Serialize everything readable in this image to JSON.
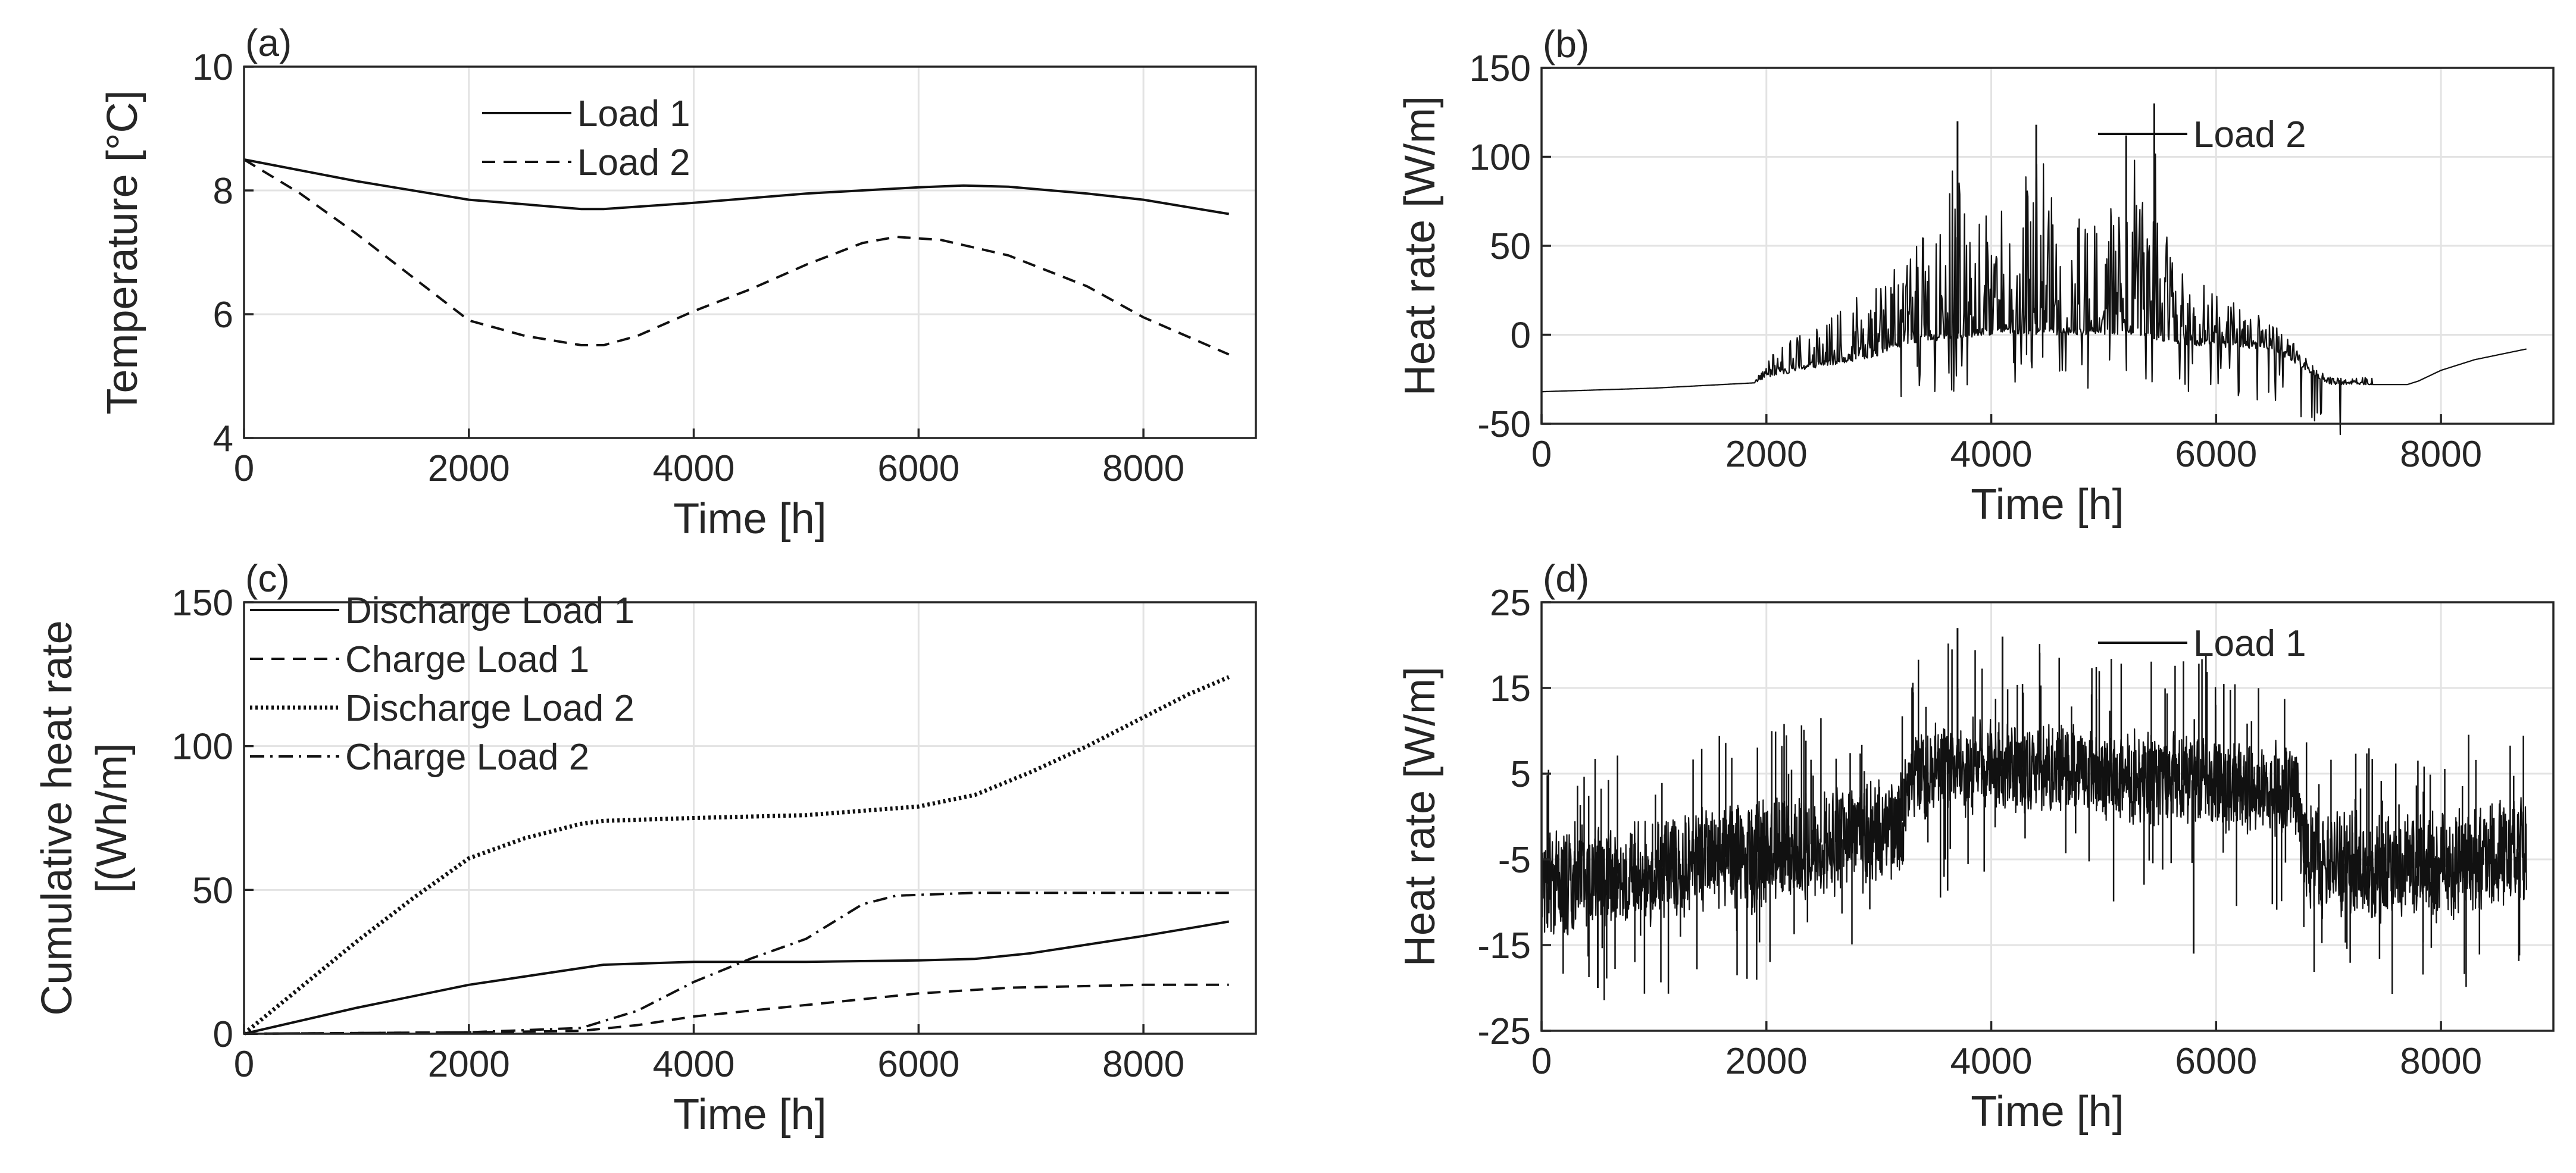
{
  "chart_data": [
    {
      "id": "a",
      "panel_label": "(a)",
      "type": "line",
      "xlabel": "Time [h]",
      "ylabel": "Temperature [°C]",
      "xlim": [
        0,
        9000
      ],
      "ylim": [
        4,
        10
      ],
      "xticks": [
        0,
        2000,
        4000,
        6000,
        8000
      ],
      "yticks": [
        4,
        6,
        8,
        10
      ],
      "legend_position": "top-center",
      "series": [
        {
          "name": "Load 1",
          "style": "solid",
          "x": [
            0,
            1000,
            2000,
            3000,
            3200,
            4000,
            5000,
            6000,
            6400,
            6800,
            7500,
            8000,
            8760
          ],
          "y": [
            8.5,
            8.15,
            7.85,
            7.7,
            7.7,
            7.8,
            7.95,
            8.05,
            8.08,
            8.06,
            7.95,
            7.85,
            7.62
          ]
        },
        {
          "name": "Load 2",
          "style": "dashed",
          "x": [
            0,
            500,
            1000,
            1500,
            2000,
            2500,
            3000,
            3200,
            3500,
            4000,
            4500,
            5000,
            5500,
            5800,
            6200,
            6800,
            7500,
            8000,
            8760
          ],
          "y": [
            8.5,
            7.95,
            7.3,
            6.6,
            5.9,
            5.65,
            5.5,
            5.5,
            5.65,
            6.05,
            6.4,
            6.8,
            7.15,
            7.25,
            7.2,
            6.95,
            6.45,
            5.95,
            5.35
          ]
        }
      ]
    },
    {
      "id": "b",
      "panel_label": "(b)",
      "type": "line",
      "xlabel": "Time [h]",
      "ylabel": "Heat rate [W/m]",
      "xlim": [
        0,
        9000
      ],
      "ylim": [
        -50,
        150
      ],
      "xticks": [
        0,
        2000,
        4000,
        6000,
        8000
      ],
      "yticks": [
        -50,
        0,
        50,
        100,
        150
      ],
      "legend_position": "top-right",
      "series": [
        {
          "name": "Load 2",
          "style": "solid-noisy",
          "baseline": {
            "x": [
              0,
              1000,
              1900,
              2000,
              2500,
              3000,
              3300,
              4000,
              5000,
              5300,
              5600,
              6000,
              6500,
              7000,
              7700,
              7800,
              8000,
              8300,
              8760
            ],
            "y": [
              -32,
              -30,
              -27,
              -24,
              -18,
              -12,
              -5,
              0,
              0,
              0,
              -5,
              -7,
              -8,
              -28,
              -28,
              -26,
              -20,
              -14,
              -8
            ]
          },
          "spike_envelope": {
            "x": [
              1900,
              2000,
              2500,
              3000,
              3400,
              3600,
              3700,
              3800,
              4000,
              4200,
              4400,
              4600,
              4800,
              5000,
              5200,
              5400,
              5450,
              5600,
              6000,
              6500,
              7000,
              7400
            ],
            "y": [
              0,
              10,
              30,
              40,
              60,
              80,
              120,
              60,
              80,
              60,
              118,
              60,
              80,
              58,
              112,
              100,
              130,
              50,
              30,
              15,
              5,
              0
            ]
          },
          "notable_peaks": [
            {
              "x": 3700,
              "y": 120
            },
            {
              "x": 4400,
              "y": 118
            },
            {
              "x": 5200,
              "y": 112
            },
            {
              "x": 5450,
              "y": 130
            }
          ]
        }
      ]
    },
    {
      "id": "c",
      "panel_label": "(c)",
      "type": "line",
      "xlabel": "Time [h]",
      "ylabel": [
        "Cumulative heat rate",
        "[(Wh/m]"
      ],
      "xlim": [
        0,
        9000
      ],
      "ylim": [
        0,
        150
      ],
      "xticks": [
        0,
        2000,
        4000,
        6000,
        8000
      ],
      "yticks": [
        0,
        50,
        100,
        150
      ],
      "legend_position": "top-left",
      "series": [
        {
          "name": "Discharge Load 1",
          "style": "solid",
          "x": [
            0,
            1000,
            2000,
            3200,
            4000,
            5000,
            6000,
            6500,
            7000,
            8000,
            8760
          ],
          "y": [
            0,
            9,
            17,
            24,
            25,
            25,
            25.5,
            26,
            28,
            34,
            39
          ]
        },
        {
          "name": "Charge Load 1",
          "style": "dashed",
          "x": [
            0,
            2000,
            3000,
            3500,
            4000,
            5000,
            6000,
            6800,
            8000,
            8760
          ],
          "y": [
            0,
            0.5,
            1,
            3,
            6,
            10,
            14,
            16,
            17,
            17
          ]
        },
        {
          "name": "Discharge Load 2",
          "style": "dotted",
          "x": [
            0,
            500,
            1000,
            1500,
            2000,
            2500,
            3000,
            3200,
            4000,
            5000,
            6000,
            6500,
            7000,
            7500,
            8000,
            8400,
            8760
          ],
          "y": [
            0,
            16,
            32,
            47,
            61,
            68,
            73,
            74,
            75,
            76,
            79,
            83,
            91,
            100,
            110,
            118,
            124
          ]
        },
        {
          "name": "Charge Load 2",
          "style": "dash-dot",
          "x": [
            0,
            2000,
            3000,
            3500,
            4000,
            4500,
            5000,
            5500,
            5800,
            6500,
            8000,
            8760
          ],
          "y": [
            0,
            0.5,
            2,
            8,
            18,
            26,
            33,
            45,
            48,
            49,
            49,
            49
          ]
        }
      ]
    },
    {
      "id": "d",
      "panel_label": "(d)",
      "type": "line",
      "xlabel": "Time [h]",
      "ylabel": "Heat rate [W/m]",
      "xlim": [
        0,
        9000
      ],
      "ylim": [
        -25,
        25
      ],
      "xticks": [
        0,
        2000,
        4000,
        6000,
        8000
      ],
      "yticks": [
        -25,
        -15,
        -5,
        5,
        15,
        25
      ],
      "legend_position": "top-right",
      "series": [
        {
          "name": "Load 1",
          "style": "solid-noisy",
          "band": {
            "x": [
              0,
              1000,
              2000,
              3000,
              3200,
              3300,
              4000,
              5000,
              6000,
              6700,
              6800,
              7500,
              8000,
              8760
            ],
            "center": [
              -8,
              -6,
              -4,
              -2,
              -1,
              5,
              6,
              5,
              4,
              3,
              -5,
              -6,
              -6,
              -4
            ],
            "half_width": [
              7,
              7,
              7,
              7,
              7,
              6,
              6,
              6,
              6,
              6,
              7,
              7,
              7,
              7
            ]
          },
          "notable_peaks": [
            {
              "x": 3700,
              "y": 22
            },
            {
              "x": 4100,
              "y": 21
            },
            {
              "x": 500,
              "y": -20
            },
            {
              "x": 5800,
              "y": -16
            }
          ]
        }
      ]
    }
  ]
}
